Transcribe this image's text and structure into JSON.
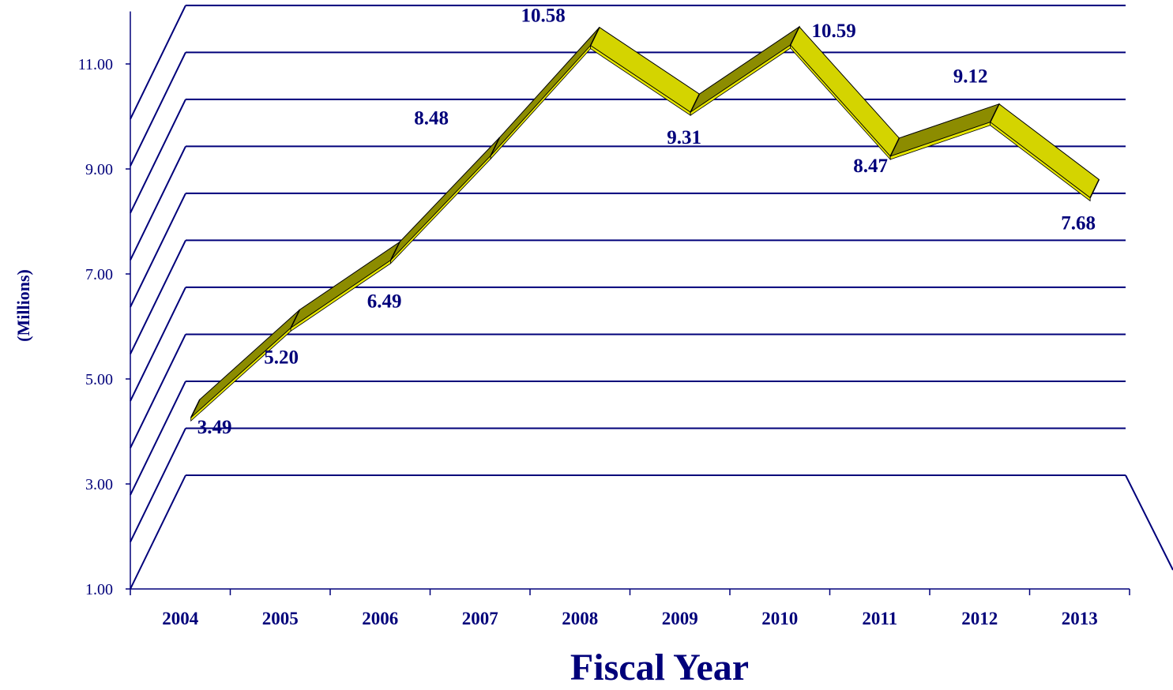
{
  "chart_data": {
    "type": "line",
    "title": "",
    "xlabel": "Fiscal Year",
    "ylabel": "(Millions)",
    "categories": [
      "2004",
      "2005",
      "2006",
      "2007",
      "2008",
      "2009",
      "2010",
      "2011",
      "2012",
      "2013"
    ],
    "values": [
      3.49,
      5.2,
      6.49,
      8.48,
      10.58,
      9.31,
      10.59,
      8.47,
      9.12,
      7.68
    ],
    "value_labels": [
      "3.49",
      "5.20",
      "6.49",
      "8.48",
      "10.58",
      "9.31",
      "10.59",
      "8.47",
      "9.12",
      "7.68"
    ],
    "yticks": [
      "1.00",
      "3.00",
      "5.00",
      "7.00",
      "9.00",
      "11.00"
    ],
    "ylim": [
      1,
      12
    ],
    "grid": true,
    "three_d": true,
    "colors": {
      "axis": "#00007a",
      "ribbon_top": "#d4d400",
      "ribbon_side": "#8c8c00",
      "text": "#00007a"
    }
  }
}
